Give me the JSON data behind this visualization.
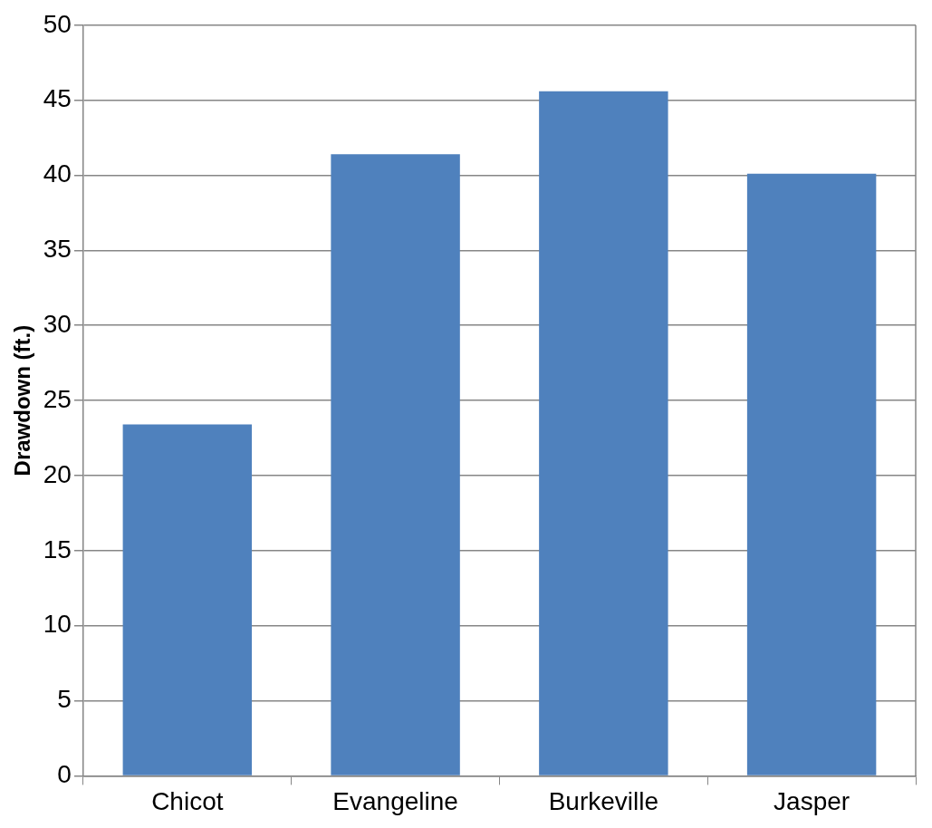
{
  "chart_data": {
    "type": "bar",
    "ylabel": "Drawdown (ft.)",
    "categories": [
      "Chicot",
      "Evangeline",
      "Burkeville",
      "Jasper"
    ],
    "values": [
      23.4,
      41.4,
      45.6,
      40.1
    ],
    "color": "#4f81bd",
    "ylim": [
      0,
      50
    ],
    "yticks": [
      0,
      5,
      10,
      15,
      20,
      25,
      30,
      35,
      40,
      45,
      50
    ],
    "grid": "y",
    "legend": false
  }
}
